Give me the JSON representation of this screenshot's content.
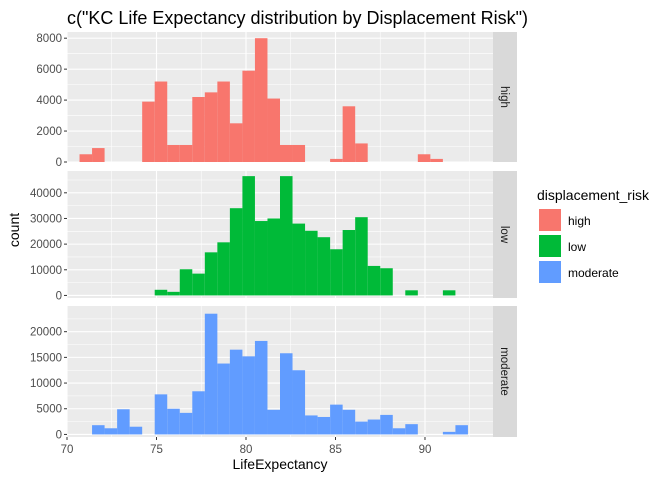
{
  "chart_data": {
    "type": "bar",
    "subtype": "faceted-histogram",
    "title": "c(\"KC Life Expectancy distribution by Displacement Risk\")",
    "xlabel": "LifeExpectancy",
    "ylabel": "count",
    "xlim": [
      70,
      93.8
    ],
    "x_ticks": [
      70,
      75,
      80,
      85,
      90
    ],
    "grid": true,
    "legend": {
      "title": "displacement_risk",
      "position": "right",
      "entries": [
        {
          "name": "high",
          "color": "#F8766D"
        },
        {
          "name": "low",
          "color": "#00BA38"
        },
        {
          "name": "moderate",
          "color": "#619CFF"
        }
      ]
    },
    "bin_edges": [
      70.7,
      71.4,
      72.1,
      72.8,
      73.5,
      74.2,
      74.9,
      75.6,
      76.3,
      77.0,
      77.7,
      78.4,
      79.1,
      79.8,
      80.5,
      81.2,
      81.9,
      82.6,
      83.3,
      84.0,
      84.7,
      85.4,
      86.1,
      86.8,
      87.5,
      88.2,
      88.9,
      89.6,
      90.3,
      91.0,
      91.7,
      92.4,
      93.1
    ],
    "facets": [
      {
        "strip": "high",
        "color": "#F8766D",
        "ylim": [
          0,
          8400
        ],
        "y_ticks": [
          0,
          2000,
          4000,
          6000,
          8000
        ],
        "counts": [
          500,
          900,
          0,
          0,
          0,
          3900,
          5200,
          1100,
          1100,
          4200,
          4500,
          5200,
          2500,
          5900,
          8000,
          4100,
          1100,
          1100,
          0,
          0,
          200,
          3600,
          1200,
          0,
          0,
          0,
          0,
          500,
          200,
          0,
          0,
          0
        ]
      },
      {
        "strip": "low",
        "color": "#00BA38",
        "ylim": [
          -1000,
          48500
        ],
        "y_ticks": [
          0,
          10000,
          20000,
          30000,
          40000
        ],
        "counts": [
          0,
          0,
          0,
          0,
          0,
          0,
          2200,
          1400,
          10200,
          8500,
          16800,
          20700,
          34000,
          46500,
          29000,
          30000,
          46500,
          28000,
          25200,
          22700,
          18000,
          25500,
          30500,
          11500,
          10600,
          0,
          2000,
          0,
          0,
          2000,
          0,
          0
        ]
      },
      {
        "strip": "moderate",
        "color": "#619CFF",
        "ylim": [
          -500,
          25000
        ],
        "y_ticks": [
          0,
          5000,
          10000,
          15000,
          20000
        ],
        "counts": [
          0,
          1800,
          1200,
          4900,
          1500,
          0,
          7800,
          5000,
          4200,
          8400,
          23500,
          13800,
          16500,
          15200,
          18200,
          4800,
          15800,
          12500,
          3700,
          3400,
          5800,
          4800,
          2500,
          2900,
          3800,
          1200,
          2000,
          0,
          0,
          500,
          1800,
          0
        ]
      }
    ]
  }
}
